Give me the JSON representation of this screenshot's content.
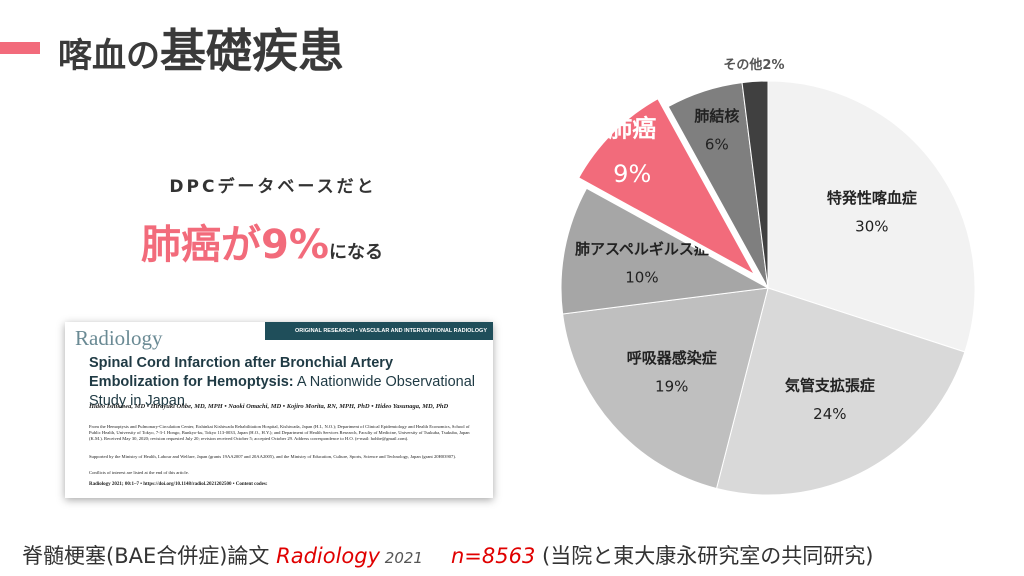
{
  "header": {
    "title_lead": "喀血の",
    "title_main": "基礎疾患"
  },
  "callout": {
    "source": "DPCデータベースだと",
    "highlight": "肺癌が9%",
    "suffix": "になる"
  },
  "paper": {
    "journal": "Radiology",
    "section": "ORIGINAL RESEARCH • VASCULAR AND INTERVENTIONAL RADIOLOGY",
    "title_bold": "Spinal Cord Infarction after Bronchial Artery Embolization for Hemoptysis:",
    "title_rest": " A Nationwide Observational Study in Japan",
    "authors": "Hideo Ishikawa, MD • Hiroyuki Ohbe, MD, MPH • Naoki Omachi, MD • Kojiro Morita, RN, MPH, PhD • Hideo Yasunaga, MD, PhD",
    "affiliations": "From the Hemoptysis and Pulmonary-Circulation Center, Eishinkai Kishiwada Rehabilitation Hospital, Kishiwada, Japan (H.I., N.O.); Department of Clinical Epidemiology and Health Economics, School of Public Health, University of Tokyo, 7-3-1 Hongo, Bunkyo-ku, Tokyo 113-0033, Japan (H.O., H.Y.); and Department of Health Services Research, Faculty of Medicine, University of Tsukuba, Tsukuba, Japan (K.M.). Received May 30, 2020; revision requested July 20; revision received October 5; accepted October 29. Address correspondence to H.O. (e-mail: hohbe@gmail.com).",
    "support": "Supported by the Ministry of Health, Labour and Welfare, Japan (grants 19AA2007 and 20AA2005), and the Ministry of Education, Culture, Sports, Science and Technology, Japan (grant 20H03907).",
    "conflicts": "Conflicts of interest are listed at the end of this article.",
    "citation": "Radiology 2021; 00:1–7 • https://doi.org/10.1148/radiol.2021202500 • Content codes:"
  },
  "footer": {
    "paper_label": "脊髄梗塞(BAE合併症)論文 ",
    "journal": "Radiology",
    "year": " 2021",
    "n": "n=8563",
    "note": " (当院と東大康永研究室の共同研究)"
  },
  "chart_data": {
    "type": "pie",
    "categories": [
      "特発性喀血症",
      "気管支拡張症",
      "呼吸器感染症",
      "肺アスペルギルス症",
      "肺癌",
      "肺結核",
      "その他"
    ],
    "values": [
      30,
      24,
      19,
      10,
      9,
      6,
      2
    ],
    "value_labels": [
      "30%",
      "24%",
      "19%",
      "10%",
      "9%",
      "6%",
      "2%"
    ],
    "colors": [
      "#f2f2f2",
      "#d9d9d9",
      "#bfbfbf",
      "#a6a6a6",
      "#f26b7b",
      "#7f7f7f",
      "#404040"
    ],
    "highlight": 4
  }
}
